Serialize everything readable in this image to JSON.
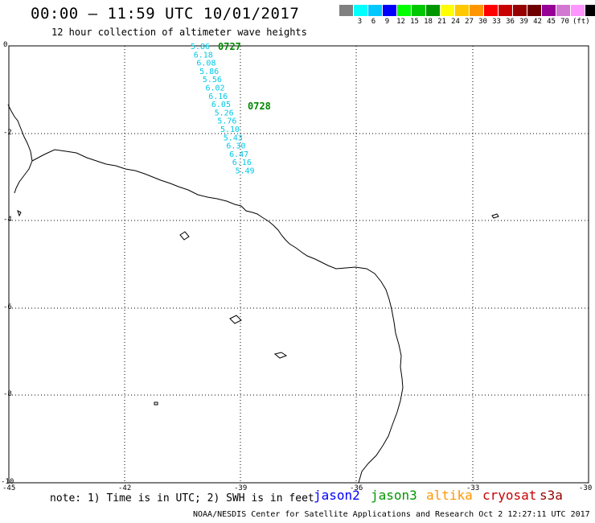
{
  "header": {
    "title": "00:00 — 11:59 UTC 10/01/2017",
    "subtitle": "12 hour collection of altimeter wave heights"
  },
  "scale": {
    "unit": "(ft)",
    "items": [
      {
        "label": "",
        "color": "#808080"
      },
      {
        "label": "3",
        "color": "#00ffff"
      },
      {
        "label": "6",
        "color": "#00c8ff"
      },
      {
        "label": "9",
        "color": "#0000ff"
      },
      {
        "label": "12",
        "color": "#00ff00"
      },
      {
        "label": "15",
        "color": "#00c800"
      },
      {
        "label": "18",
        "color": "#009600"
      },
      {
        "label": "21",
        "color": "#ffff00"
      },
      {
        "label": "24",
        "color": "#ffc800"
      },
      {
        "label": "27",
        "color": "#ff9600"
      },
      {
        "label": "30",
        "color": "#ff0000"
      },
      {
        "label": "33",
        "color": "#c80000"
      },
      {
        "label": "36",
        "color": "#960000"
      },
      {
        "label": "39",
        "color": "#6e0000"
      },
      {
        "label": "42",
        "color": "#960096"
      },
      {
        "label": "45",
        "color": "#d278d2"
      },
      {
        "label": "70",
        "color": "#ff96ff"
      },
      {
        "label": "",
        "color": "#000000"
      }
    ]
  },
  "axes": {
    "lat_labels": [
      "0",
      "-2",
      "-4",
      "-6",
      "-8",
      "-10"
    ],
    "lon_labels": [
      "-45",
      "-42",
      "-39",
      "-36",
      "-33",
      "-30"
    ]
  },
  "track": {
    "color": "#00c8e6",
    "label_color": "#008800",
    "time_labels": [
      "0727",
      "0728"
    ],
    "values": [
      "5.86",
      "6.18",
      "6.08",
      "5.86",
      "5.56",
      "6.02",
      "6.16",
      "6.05",
      "5.26",
      "5.76",
      "5.10",
      "5.43",
      "6.30",
      "6.47",
      "6.16",
      "5.49"
    ]
  },
  "note": "note: 1) Time is in UTC; 2) SWH is in feet",
  "satellites": [
    {
      "name": "jason2",
      "color": "#0000ff"
    },
    {
      "name": "jason3",
      "color": "#009600"
    },
    {
      "name": "altika",
      "color": "#ff9600"
    },
    {
      "name": "cryosat",
      "color": "#c80000"
    },
    {
      "name": "s3a",
      "color": "#960000"
    }
  ],
  "credit": "NOAA/NESDIS Center for Satellite Applications and Research   Oct  2 12:27:11 UTC 2017"
}
